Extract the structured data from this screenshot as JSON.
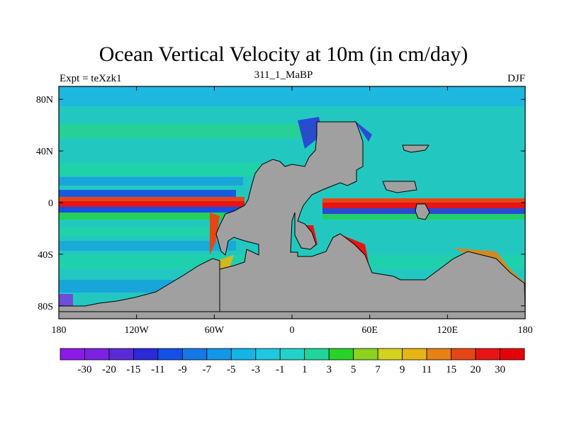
{
  "title": "Ocean Vertical Velocity at 10m (in cm/day)",
  "left_subtitle": "Expt = teXzk1",
  "center_subtitle": "311_1_MaBP",
  "right_subtitle": "DJF",
  "colors": {
    "land": "#a0a0a0",
    "background_field": "#22c8c0"
  },
  "axes": {
    "x_ticks": [
      "180",
      "120W",
      "60W",
      "0",
      "60E",
      "120E",
      "180"
    ],
    "y_ticks": [
      "80N",
      "40N",
      "0",
      "40S",
      "80S"
    ]
  },
  "colorbar": {
    "labels": [
      "-30",
      "-20",
      "-15",
      "-11",
      "-9",
      "-7",
      "-5",
      "-3",
      "-1",
      "1",
      "3",
      "5",
      "7",
      "9",
      "11",
      "15",
      "20",
      "30"
    ],
    "colors": [
      "#8b1ae6",
      "#7a22e0",
      "#5a2ad8",
      "#2a2ad8",
      "#1450e6",
      "#1478e6",
      "#1496e6",
      "#14b4e6",
      "#1ec8e0",
      "#22d2c8",
      "#1ed69a",
      "#28d228",
      "#8cd21e",
      "#d2d21e",
      "#e6b414",
      "#e68214",
      "#e64614",
      "#e61414",
      "#e6000a"
    ]
  }
}
